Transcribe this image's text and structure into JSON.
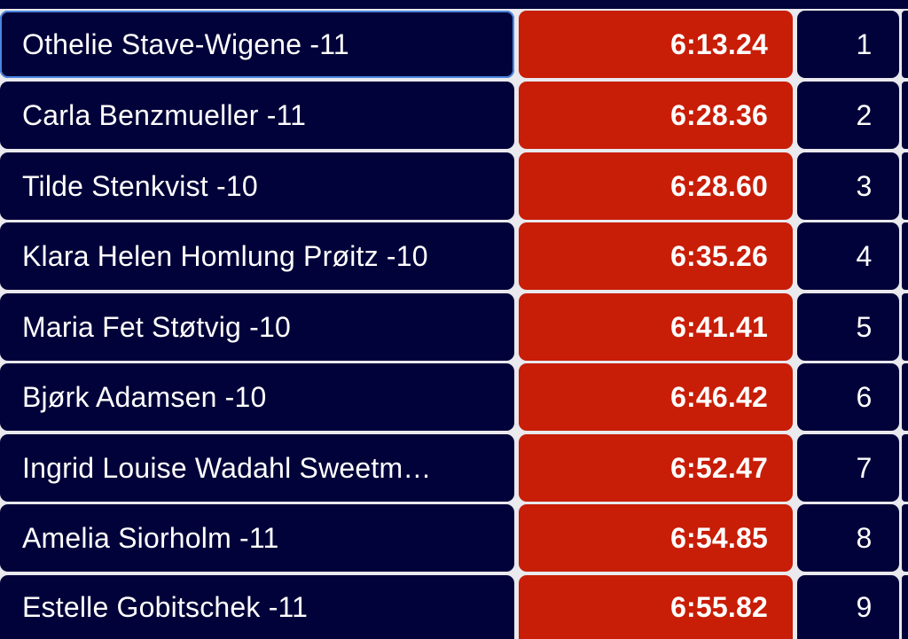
{
  "results": [
    {
      "name": "Othelie Stave-Wigene -11",
      "time": "6:13.24",
      "place": "1"
    },
    {
      "name": "Carla Benzmueller -11",
      "time": "6:28.36",
      "place": "2"
    },
    {
      "name": "Tilde Stenkvist -10",
      "time": "6:28.60",
      "place": "3"
    },
    {
      "name": "Klara Helen Homlung Prøitz -10",
      "time": "6:35.26",
      "place": "4"
    },
    {
      "name": "Maria Fet Støtvig -10",
      "time": "6:41.41",
      "place": "5"
    },
    {
      "name": "Bjørk Adamsen -10",
      "time": "6:46.42",
      "place": "6"
    },
    {
      "name": "Ingrid Louise Wadahl Sweetm…",
      "time": "6:52.47",
      "place": "7"
    },
    {
      "name": "Amelia Siorholm -11",
      "time": "6:54.85",
      "place": "8"
    },
    {
      "name": "Estelle Gobitschek -11",
      "time": "6:55.82",
      "place": "9"
    }
  ],
  "colors": {
    "row_background": "#02023a",
    "time_background": "#c81d06",
    "separator": "#e9e9ee",
    "text": "#ffffff",
    "selection_border": "#4a86e0"
  }
}
